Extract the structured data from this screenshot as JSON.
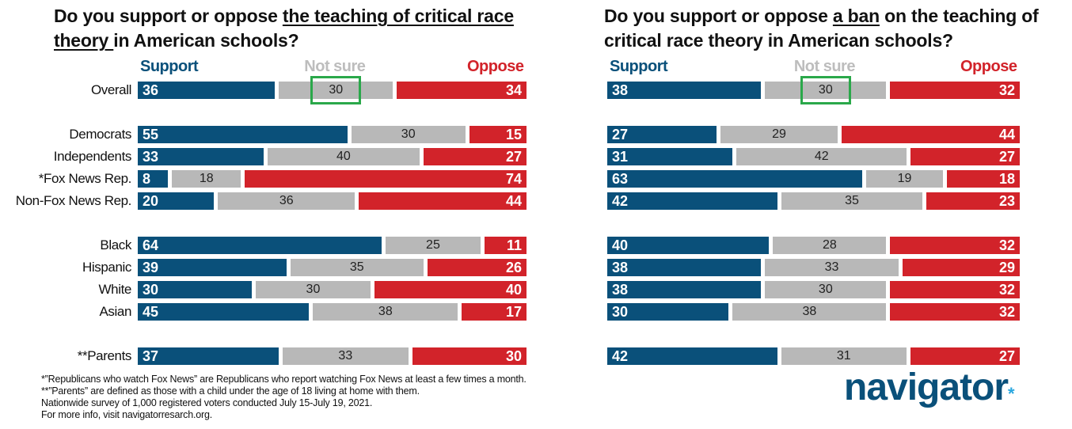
{
  "legend": {
    "support": "Support",
    "not_sure": "Not sure",
    "oppose": "Oppose"
  },
  "colors": {
    "support": "#0a507a",
    "not_sure": "#b8b8b8",
    "oppose": "#d2232a",
    "highlight": "#2aa84a",
    "logo": "#0a507a",
    "logo_star": "#2aa7df"
  },
  "chart_data": [
    {
      "type": "bar",
      "orientation": "horizontal",
      "stacked": true,
      "title": {
        "pre": "Do you support or oppose ",
        "underlined": "the teaching of critical race theory ",
        "post": "in American schools?"
      },
      "categories": [
        "Overall",
        "Democrats",
        "Independents",
        "*Fox News Rep.",
        "Non-Fox News Rep.",
        "Black",
        "Hispanic",
        "White",
        "Asian",
        "**Parents"
      ],
      "series": [
        {
          "name": "Support",
          "values": [
            36,
            55,
            33,
            8,
            20,
            64,
            39,
            30,
            45,
            37
          ]
        },
        {
          "name": "Not sure",
          "values": [
            30,
            30,
            40,
            18,
            36,
            25,
            35,
            30,
            38,
            33
          ]
        },
        {
          "name": "Oppose",
          "values": [
            34,
            15,
            27,
            74,
            44,
            11,
            26,
            40,
            17,
            30
          ]
        }
      ],
      "highlight": {
        "category": "Overall",
        "series": "Not sure"
      }
    },
    {
      "type": "bar",
      "orientation": "horizontal",
      "stacked": true,
      "title": {
        "pre": "Do you support or oppose ",
        "underlined": "a ban",
        "post": " on the teaching of critical race theory in American schools?"
      },
      "categories": [
        "Overall",
        "Democrats",
        "Independents",
        "*Fox News Rep.",
        "Non-Fox News Rep.",
        "Black",
        "Hispanic",
        "White",
        "Asian",
        "**Parents"
      ],
      "series": [
        {
          "name": "Support",
          "values": [
            38,
            27,
            31,
            63,
            42,
            40,
            38,
            38,
            30,
            42
          ]
        },
        {
          "name": "Not sure",
          "values": [
            30,
            29,
            42,
            19,
            35,
            28,
            33,
            30,
            38,
            31
          ]
        },
        {
          "name": "Oppose",
          "values": [
            32,
            44,
            27,
            18,
            23,
            32,
            29,
            32,
            32,
            27
          ]
        }
      ],
      "highlight": {
        "category": "Overall",
        "series": "Not sure"
      }
    }
  ],
  "footnotes": [
    "*”Republicans who watch Fox News” are Republicans who report watching Fox News at least a few times a month.",
    "**”Parents” are defined as those with a child under the age of 18 living at home with them.",
    "Nationwide survey of 1,000 registered voters conducted July 15-July 19, 2021.",
    "For more info, visit navigatorresarch.org."
  ],
  "logo": {
    "text": "navigator",
    "mark": "*"
  }
}
